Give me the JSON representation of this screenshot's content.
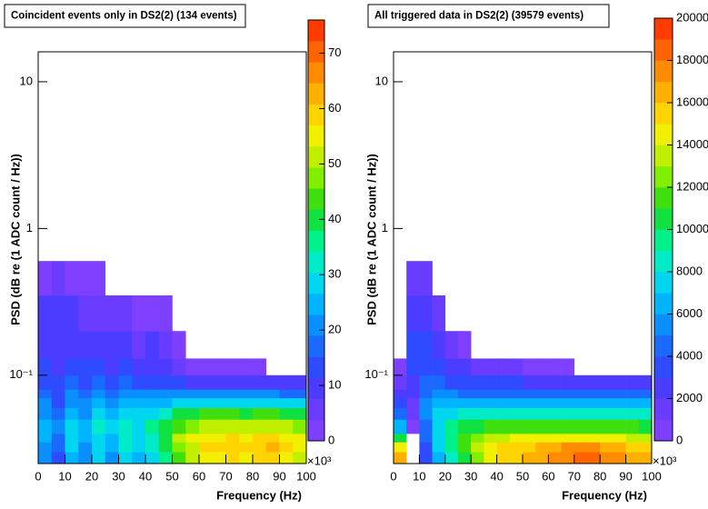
{
  "chart_data": [
    {
      "type": "heatmap",
      "title": "Coincident events only in DS2(2) (134 events)",
      "x_label": "Frequency (Hz)",
      "y_label": "PSD (dB re (1 ADC count / Hz))",
      "x_multiplier": "×10³",
      "xlim": [
        0,
        100
      ],
      "xticks": [
        0,
        10,
        20,
        30,
        40,
        50,
        60,
        70,
        80,
        90,
        100
      ],
      "ylim": [
        0.025,
        16
      ],
      "log_y": true,
      "yticks": [
        {
          "value": 0.1,
          "label": "10⁻¹"
        },
        1,
        10
      ],
      "x_bins": [
        0,
        5,
        10,
        15,
        20,
        25,
        30,
        35,
        40,
        45,
        50,
        55,
        60,
        65,
        70,
        75,
        80,
        85,
        90,
        95,
        100
      ],
      "y_bins": [
        0.025,
        0.03,
        0.035,
        0.04,
        0.05,
        0.06,
        0.07,
        0.08,
        0.1,
        0.13,
        0.2,
        0.35,
        0.6
      ],
      "z": [
        [
          20,
          15,
          25,
          20,
          28,
          22,
          30,
          25,
          30,
          35,
          45,
          50,
          55,
          55,
          58,
          55,
          58,
          60,
          55,
          50
        ],
        [
          22,
          18,
          28,
          22,
          30,
          25,
          32,
          28,
          32,
          38,
          48,
          52,
          58,
          58,
          60,
          58,
          60,
          62,
          58,
          55
        ],
        [
          24,
          18,
          28,
          24,
          30,
          26,
          32,
          30,
          34,
          40,
          50,
          55,
          55,
          56,
          58,
          56,
          58,
          60,
          56,
          55
        ],
        [
          25,
          20,
          30,
          25,
          32,
          28,
          34,
          30,
          35,
          38,
          45,
          48,
          50,
          50,
          52,
          50,
          52,
          52,
          50,
          48
        ],
        [
          22,
          18,
          26,
          22,
          28,
          25,
          30,
          28,
          30,
          32,
          38,
          40,
          42,
          42,
          42,
          40,
          42,
          42,
          40,
          40
        ],
        [
          20,
          15,
          22,
          20,
          24,
          22,
          25,
          24,
          25,
          26,
          28,
          30,
          30,
          30,
          30,
          30,
          30,
          30,
          28,
          28
        ],
        [
          18,
          14,
          20,
          18,
          20,
          18,
          22,
          20,
          20,
          20,
          20,
          20,
          22,
          20,
          20,
          20,
          20,
          20,
          18,
          18
        ],
        [
          15,
          12,
          16,
          15,
          16,
          15,
          16,
          15,
          15,
          14,
          12,
          10,
          10,
          10,
          9,
          9,
          9,
          8,
          8,
          8
        ],
        [
          12,
          10,
          12,
          12,
          12,
          10,
          12,
          10,
          10,
          8,
          5,
          3,
          2,
          2,
          1,
          1,
          1,
          0,
          0,
          0
        ],
        [
          10,
          8,
          10,
          10,
          10,
          8,
          8,
          6,
          8,
          4,
          1,
          0,
          0,
          0,
          0,
          0,
          0,
          0,
          0,
          0
        ],
        [
          8,
          8,
          8,
          6,
          6,
          4,
          4,
          2,
          3,
          1,
          0,
          0,
          0,
          0,
          0,
          0,
          0,
          0,
          0,
          0
        ],
        [
          3,
          4,
          2,
          1,
          1,
          0,
          0,
          0,
          0,
          0,
          0,
          0,
          0,
          0,
          0,
          0,
          0,
          0,
          0,
          0
        ]
      ],
      "zlim": [
        0,
        76
      ],
      "zticks": [
        0,
        10,
        20,
        30,
        40,
        50,
        60,
        70
      ],
      "palette": [
        "#7f3fff",
        "#6a3cff",
        "#4b3cff",
        "#2f4bff",
        "#1a6aff",
        "#0a8fff",
        "#00b4ff",
        "#00d6f0",
        "#00ecc8",
        "#00f08a",
        "#10e040",
        "#40e010",
        "#80f000",
        "#c0f000",
        "#f0f000",
        "#ffd400",
        "#ffb000",
        "#ff8c00",
        "#ff6400",
        "#ff3c00"
      ]
    },
    {
      "type": "heatmap",
      "title": "All triggered data in DS2(2) (39579 events)",
      "x_label": "Frequency (Hz)",
      "y_label": "PSD (dB re (1 ADC count / Hz))",
      "x_multiplier": "×10³",
      "xlim": [
        0,
        100
      ],
      "xticks": [
        0,
        10,
        20,
        30,
        40,
        50,
        60,
        70,
        80,
        90,
        100
      ],
      "ylim": [
        0.025,
        16
      ],
      "log_y": true,
      "yticks": [
        {
          "value": 0.1,
          "label": "10⁻¹"
        },
        1,
        10
      ],
      "x_bins": [
        0,
        5,
        10,
        15,
        20,
        25,
        30,
        35,
        40,
        45,
        50,
        55,
        60,
        65,
        70,
        75,
        80,
        85,
        90,
        95,
        100
      ],
      "y_bins": [
        0.025,
        0.03,
        0.035,
        0.04,
        0.05,
        0.06,
        0.07,
        0.08,
        0.1,
        0.13,
        0.2,
        0.35,
        0.6
      ],
      "z": [
        [
          16000,
          0,
          3000,
          6000,
          8000,
          10000,
          12000,
          14000,
          15000,
          15500,
          16000,
          16500,
          17000,
          17500,
          18000,
          18000,
          17500,
          17000,
          16500,
          16000
        ],
        [
          14000,
          0,
          3500,
          7000,
          9000,
          11000,
          13000,
          14000,
          15000,
          15000,
          15500,
          16000,
          16500,
          17000,
          17000,
          17000,
          16500,
          16000,
          15500,
          15000
        ],
        [
          10000,
          0,
          4000,
          7500,
          9500,
          11000,
          12500,
          13000,
          13500,
          14000,
          14000,
          14500,
          14500,
          14500,
          14500,
          14000,
          14000,
          14000,
          13500,
          13500
        ],
        [
          6000,
          500,
          4500,
          7500,
          9000,
          10000,
          10500,
          11000,
          11000,
          11000,
          11000,
          11500,
          11500,
          11500,
          11500,
          11000,
          11000,
          11000,
          11000,
          10500
        ],
        [
          4000,
          1000,
          5000,
          7000,
          7500,
          8000,
          8000,
          8000,
          8000,
          8000,
          8000,
          8000,
          8000,
          8000,
          8000,
          8000,
          8000,
          8000,
          8000,
          8000
        ],
        [
          3000,
          1500,
          5000,
          6000,
          6000,
          6000,
          6000,
          6000,
          6000,
          6000,
          6000,
          6000,
          6000,
          6000,
          6000,
          6000,
          6000,
          6000,
          6000,
          6000
        ],
        [
          2500,
          2000,
          4500,
          5000,
          5000,
          4500,
          4500,
          4500,
          4500,
          4500,
          4500,
          4500,
          4500,
          4500,
          4500,
          4500,
          4500,
          4500,
          4000,
          4000
        ],
        [
          1500,
          2500,
          4000,
          4000,
          3500,
          3500,
          3000,
          3000,
          3000,
          3000,
          2500,
          2500,
          2500,
          2500,
          2500,
          2500,
          2000,
          2000,
          2000,
          2000
        ],
        [
          500,
          3000,
          3500,
          3000,
          2500,
          2000,
          1500,
          1500,
          1000,
          1500,
          500,
          300,
          200,
          100,
          0,
          0,
          0,
          0,
          0,
          0
        ],
        [
          0,
          3000,
          3000,
          2500,
          1500,
          500,
          0,
          0,
          0,
          0,
          0,
          0,
          0,
          0,
          0,
          0,
          0,
          0,
          0,
          0
        ],
        [
          0,
          2500,
          2500,
          1500,
          0,
          0,
          0,
          0,
          0,
          0,
          0,
          0,
          0,
          0,
          0,
          0,
          0,
          0,
          0,
          0
        ],
        [
          0,
          1500,
          1000,
          0,
          0,
          0,
          0,
          0,
          0,
          0,
          0,
          0,
          0,
          0,
          0,
          0,
          0,
          0,
          0,
          0
        ]
      ],
      "zlim": [
        0,
        20000
      ],
      "zticks": [
        0,
        2000,
        4000,
        6000,
        8000,
        10000,
        12000,
        14000,
        16000,
        18000,
        20000
      ],
      "palette": [
        "#7f3fff",
        "#6a3cff",
        "#4b3cff",
        "#2f4bff",
        "#1a6aff",
        "#0a8fff",
        "#00b4ff",
        "#00d6f0",
        "#00ecc8",
        "#00f08a",
        "#10e040",
        "#40e010",
        "#80f000",
        "#c0f000",
        "#f0f000",
        "#ffd400",
        "#ffb000",
        "#ff8c00",
        "#ff6400",
        "#ff3c00"
      ]
    }
  ]
}
